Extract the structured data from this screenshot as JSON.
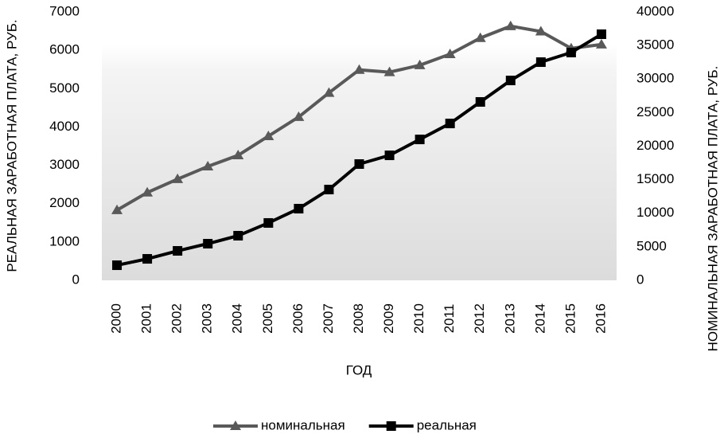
{
  "chart_data": {
    "type": "line",
    "xlabel": "ГОД",
    "ylabel": "РЕАЛЬНАЯ ЗАРАБОТНАЯ ПЛАТА, РУБ.",
    "y2label": "НОМИНАЛЬНАЯ ЗАРАБОТНАЯ ПЛАТА, РУБ.",
    "categories": [
      "2000",
      "2001",
      "2002",
      "2003",
      "2004",
      "2005",
      "2006",
      "2007",
      "2008",
      "2009",
      "2010",
      "2011",
      "2012",
      "2013",
      "2014",
      "2015",
      "2016"
    ],
    "series": [
      {
        "name": "номинальная",
        "color": "#595959",
        "marker": "triangle",
        "axis": "y",
        "values": [
          1830,
          2290,
          2640,
          2970,
          3260,
          3760,
          4260,
          4890,
          5490,
          5430,
          5610,
          5900,
          6320,
          6630,
          6490,
          6050,
          6150
        ]
      },
      {
        "name": "реальная",
        "color": "#000000",
        "marker": "square",
        "axis": "y2",
        "values": [
          2250,
          3200,
          4390,
          5460,
          6650,
          8550,
          10680,
          13530,
          17330,
          18630,
          21000,
          23380,
          26590,
          29790,
          32520,
          33950,
          36680
        ]
      }
    ],
    "ylim": [
      0,
      7000
    ],
    "yticks": [
      0,
      1000,
      2000,
      3000,
      4000,
      5000,
      6000,
      7000
    ],
    "y2lim": [
      0,
      40000
    ],
    "y2ticks": [
      0,
      5000,
      10000,
      15000,
      20000,
      25000,
      30000,
      35000,
      40000
    ],
    "legend": "bottom"
  }
}
